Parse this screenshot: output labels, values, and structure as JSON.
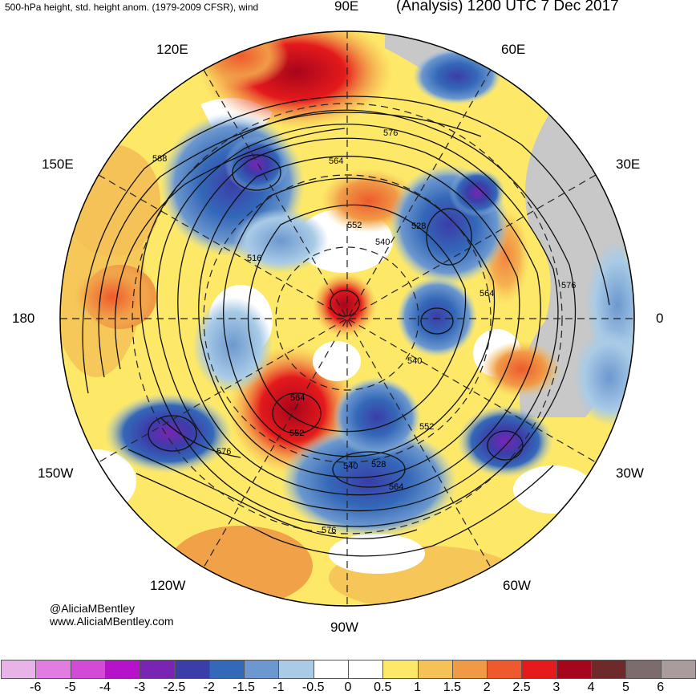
{
  "header": {
    "left_title": "500-hPa height, std. height anom. (1979-2009 CFSR), wind",
    "right_title": "(Analysis) 1200 UTC 7 Dec 2017"
  },
  "longitude_labels": {
    "lon_90e": "90E",
    "lon_120e": "120E",
    "lon_60e": "60E",
    "lon_150e": "150E",
    "lon_30e": "30E",
    "lon_180": "180",
    "lon_0": "0",
    "lon_150w": "150W",
    "lon_30w": "30W",
    "lon_120w": "120W",
    "lon_60w": "60W",
    "lon_90w": "90W"
  },
  "contour_labels": [
    "588",
    "564",
    "576",
    "552",
    "540",
    "528",
    "516",
    "564",
    "576",
    "540",
    "564",
    "552",
    "552",
    "540",
    "528",
    "564",
    "576",
    "576"
  ],
  "credits": {
    "handle": "@AliciaMBentley",
    "website": "www.AliciaMBentley.com"
  },
  "colorbar": {
    "labels": [
      "-6",
      "-5",
      "-4",
      "-3",
      "-2.5",
      "-2",
      "-1.5",
      "-1",
      "-0.5",
      "0",
      "0.5",
      "1",
      "1.5",
      "2",
      "2.5",
      "3",
      "4",
      "5",
      "6"
    ],
    "colors": [
      "#e8b4e8",
      "#e17de1",
      "#d24bd6",
      "#b612c9",
      "#7a24b4",
      "#3b3da8",
      "#3468b8",
      "#6c98cf",
      "#a9cbe6",
      "#ffffff",
      "#ffffff",
      "#fde868",
      "#f5c258",
      "#f09a46",
      "#ee5a2e",
      "#e41a1c",
      "#a7051b",
      "#6e2a2a",
      "#7c6c6c",
      "#a89c9c"
    ]
  },
  "colors": {
    "land_gray": "#c8c8c8",
    "contour": "#111111",
    "grid_dash": "#222222"
  }
}
